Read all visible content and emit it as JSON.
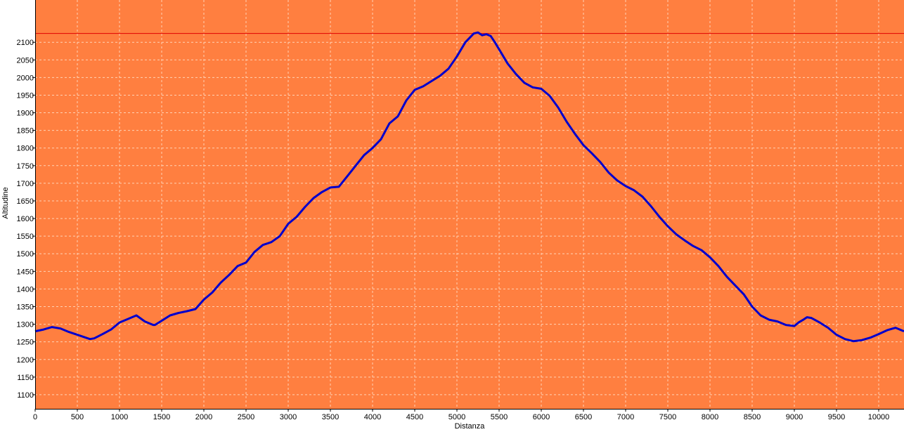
{
  "chart_data": {
    "type": "line",
    "title": "",
    "xlabel": "Distanza",
    "ylabel": "Altitudine",
    "xlim": [
      0,
      10300
    ],
    "ylim": [
      1060,
      2220
    ],
    "grid": true,
    "x_ticks": [
      0,
      500,
      1000,
      1500,
      2000,
      2500,
      3000,
      3500,
      4000,
      4500,
      5000,
      5500,
      6000,
      6500,
      7000,
      7500,
      8000,
      8500,
      9000,
      9500,
      10000
    ],
    "y_ticks": [
      1100,
      1150,
      1200,
      1250,
      1300,
      1350,
      1400,
      1450,
      1500,
      1550,
      1600,
      1650,
      1700,
      1750,
      1800,
      1850,
      1900,
      1950,
      2000,
      2050,
      2100
    ],
    "max_line": 2125,
    "colors": {
      "plot_background": "#FF7F40",
      "grid": "#FFD2B4",
      "series": "#0000CC",
      "max_line": "#E00000",
      "axis": "#000000"
    },
    "series": [
      {
        "x": [
          0,
          100,
          200,
          300,
          400,
          500,
          600,
          650,
          700,
          800,
          900,
          1000,
          1100,
          1200,
          1300,
          1400,
          1420,
          1500,
          1600,
          1700,
          1800,
          1900,
          2000,
          2100,
          2200,
          2300,
          2400,
          2500,
          2600,
          2700,
          2800,
          2900,
          3000,
          3100,
          3200,
          3300,
          3400,
          3500,
          3600,
          3700,
          3800,
          3900,
          4000,
          4100,
          4200,
          4300,
          4400,
          4500,
          4600,
          4700,
          4800,
          4900,
          5000,
          5100,
          5200,
          5250,
          5300,
          5350,
          5400,
          5450,
          5500,
          5600,
          5700,
          5800,
          5900,
          6000,
          6100,
          6200,
          6300,
          6400,
          6500,
          6600,
          6700,
          6800,
          6900,
          7000,
          7100,
          7200,
          7300,
          7400,
          7500,
          7600,
          7700,
          7800,
          7900,
          8000,
          8100,
          8200,
          8300,
          8400,
          8500,
          8600,
          8700,
          8800,
          8900,
          9000,
          9050,
          9100,
          9150,
          9200,
          9300,
          9400,
          9500,
          9600,
          9700,
          9800,
          9900,
          10000,
          10100,
          10200,
          10300
        ],
        "y": [
          1280,
          1285,
          1292,
          1288,
          1278,
          1270,
          1262,
          1258,
          1260,
          1272,
          1285,
          1305,
          1315,
          1325,
          1308,
          1298,
          1298,
          1310,
          1325,
          1332,
          1337,
          1343,
          1370,
          1390,
          1418,
          1440,
          1465,
          1475,
          1505,
          1525,
          1533,
          1550,
          1585,
          1605,
          1633,
          1658,
          1675,
          1688,
          1690,
          1720,
          1750,
          1780,
          1800,
          1825,
          1870,
          1890,
          1935,
          1965,
          1975,
          1990,
          2005,
          2025,
          2060,
          2100,
          2125,
          2128,
          2120,
          2123,
          2118,
          2100,
          2080,
          2040,
          2010,
          1985,
          1972,
          1968,
          1948,
          1915,
          1875,
          1840,
          1808,
          1785,
          1760,
          1730,
          1708,
          1692,
          1680,
          1662,
          1635,
          1605,
          1578,
          1555,
          1538,
          1522,
          1510,
          1490,
          1465,
          1435,
          1410,
          1385,
          1350,
          1325,
          1313,
          1308,
          1298,
          1295,
          1305,
          1312,
          1320,
          1318,
          1305,
          1290,
          1270,
          1258,
          1252,
          1255,
          1262,
          1272,
          1283,
          1290,
          1280
        ]
      }
    ]
  }
}
